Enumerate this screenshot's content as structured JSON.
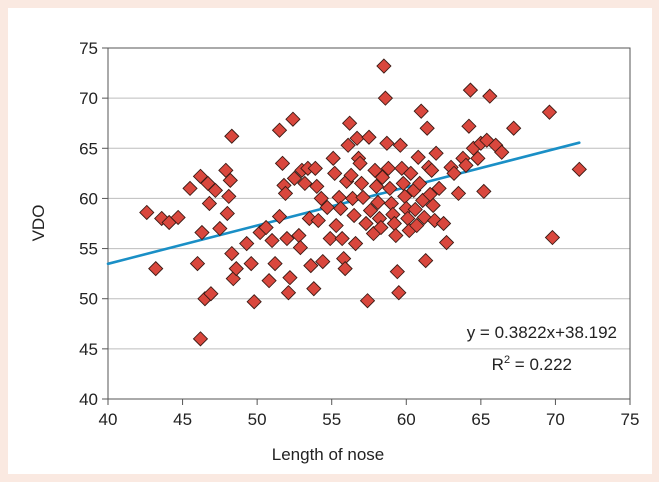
{
  "chart_data": {
    "type": "scatter",
    "xlabel": "Length of nose",
    "ylabel": "VDO",
    "xlim": [
      40,
      75
    ],
    "ylim": [
      40,
      75
    ],
    "xticks": [
      "40",
      "45",
      "50",
      "55",
      "60",
      "65",
      "70",
      "75"
    ],
    "yticks": [
      "40",
      "45",
      "50",
      "55",
      "60",
      "65",
      "70",
      "75"
    ],
    "grid": "horizontal",
    "marker": "diamond",
    "marker_color": "#d9473d",
    "trendline_color": "#1a8fc6",
    "trendline": {
      "slope": 0.3822,
      "intercept": 38.192
    },
    "equation_text": "y = 0.3822x+38.192",
    "r2_prefix": "R",
    "r2_sup": "2",
    "r2_value": " = 0.222",
    "points": [
      [
        42.6,
        58.6
      ],
      [
        43.2,
        53.0
      ],
      [
        43.6,
        58.0
      ],
      [
        44.1,
        57.6
      ],
      [
        44.7,
        58.1
      ],
      [
        45.5,
        61.0
      ],
      [
        46.0,
        53.5
      ],
      [
        46.2,
        62.2
      ],
      [
        46.2,
        46.0
      ],
      [
        46.3,
        56.6
      ],
      [
        46.5,
        50.0
      ],
      [
        46.7,
        61.5
      ],
      [
        46.8,
        59.5
      ],
      [
        46.9,
        50.5
      ],
      [
        47.2,
        60.8
      ],
      [
        47.5,
        57.0
      ],
      [
        47.9,
        62.8
      ],
      [
        48.0,
        58.5
      ],
      [
        48.1,
        60.2
      ],
      [
        48.2,
        61.8
      ],
      [
        48.3,
        66.2
      ],
      [
        48.3,
        54.5
      ],
      [
        48.4,
        52.0
      ],
      [
        48.6,
        53.0
      ],
      [
        49.3,
        55.5
      ],
      [
        49.6,
        53.5
      ],
      [
        49.8,
        49.7
      ],
      [
        50.2,
        56.6
      ],
      [
        50.6,
        57.1
      ],
      [
        50.8,
        51.8
      ],
      [
        51.0,
        55.8
      ],
      [
        51.2,
        53.5
      ],
      [
        51.5,
        58.2
      ],
      [
        51.5,
        66.8
      ],
      [
        51.7,
        63.5
      ],
      [
        51.8,
        61.3
      ],
      [
        51.9,
        60.5
      ],
      [
        52.0,
        56.0
      ],
      [
        52.1,
        50.6
      ],
      [
        52.2,
        52.1
      ],
      [
        52.4,
        67.9
      ],
      [
        52.5,
        62.0
      ],
      [
        52.8,
        56.3
      ],
      [
        52.9,
        55.1
      ],
      [
        53.0,
        62.8
      ],
      [
        53.2,
        61.5
      ],
      [
        53.4,
        63.0
      ],
      [
        53.5,
        58.0
      ],
      [
        53.6,
        53.3
      ],
      [
        53.8,
        51.0
      ],
      [
        53.9,
        63.0
      ],
      [
        54.0,
        61.2
      ],
      [
        54.1,
        57.8
      ],
      [
        54.3,
        60.0
      ],
      [
        54.4,
        53.7
      ],
      [
        54.7,
        59.1
      ],
      [
        54.9,
        56.0
      ],
      [
        55.1,
        64.0
      ],
      [
        55.2,
        62.5
      ],
      [
        55.3,
        57.3
      ],
      [
        55.5,
        60.1
      ],
      [
        55.6,
        59.0
      ],
      [
        55.7,
        56.0
      ],
      [
        55.8,
        54.0
      ],
      [
        55.9,
        53.0
      ],
      [
        56.0,
        61.7
      ],
      [
        56.1,
        65.3
      ],
      [
        56.2,
        67.5
      ],
      [
        56.3,
        62.3
      ],
      [
        56.4,
        60.0
      ],
      [
        56.5,
        58.3
      ],
      [
        56.6,
        55.5
      ],
      [
        56.7,
        66.0
      ],
      [
        56.8,
        64.0
      ],
      [
        56.9,
        63.5
      ],
      [
        57.0,
        61.5
      ],
      [
        57.1,
        60.1
      ],
      [
        57.3,
        57.5
      ],
      [
        57.4,
        49.8
      ],
      [
        57.5,
        66.1
      ],
      [
        57.6,
        58.8
      ],
      [
        57.8,
        56.5
      ],
      [
        57.9,
        62.8
      ],
      [
        58.0,
        61.2
      ],
      [
        58.1,
        59.6
      ],
      [
        58.2,
        58.0
      ],
      [
        58.3,
        57.1
      ],
      [
        58.4,
        62.1
      ],
      [
        58.5,
        73.2
      ],
      [
        58.6,
        70.0
      ],
      [
        58.7,
        65.5
      ],
      [
        58.8,
        63.0
      ],
      [
        58.9,
        61.0
      ],
      [
        59.0,
        59.5
      ],
      [
        59.1,
        58.4
      ],
      [
        59.2,
        57.5
      ],
      [
        59.3,
        56.3
      ],
      [
        59.4,
        52.7
      ],
      [
        59.5,
        50.6
      ],
      [
        59.6,
        65.3
      ],
      [
        59.7,
        63.0
      ],
      [
        59.8,
        61.5
      ],
      [
        59.9,
        60.2
      ],
      [
        60.0,
        59.0
      ],
      [
        60.1,
        58.0
      ],
      [
        60.2,
        56.8
      ],
      [
        60.3,
        62.5
      ],
      [
        60.5,
        60.8
      ],
      [
        60.6,
        58.9
      ],
      [
        60.7,
        57.3
      ],
      [
        60.8,
        64.1
      ],
      [
        60.9,
        61.5
      ],
      [
        61.0,
        68.7
      ],
      [
        61.1,
        59.8
      ],
      [
        61.2,
        58.1
      ],
      [
        61.3,
        53.8
      ],
      [
        61.4,
        67.0
      ],
      [
        61.5,
        63.1
      ],
      [
        61.6,
        60.4
      ],
      [
        61.7,
        62.8
      ],
      [
        61.8,
        59.3
      ],
      [
        61.9,
        57.8
      ],
      [
        62.0,
        64.5
      ],
      [
        62.2,
        61.0
      ],
      [
        62.5,
        57.5
      ],
      [
        62.7,
        55.6
      ],
      [
        63.0,
        63.1
      ],
      [
        63.2,
        62.5
      ],
      [
        63.5,
        60.5
      ],
      [
        63.8,
        64.0
      ],
      [
        64.0,
        63.3
      ],
      [
        64.2,
        67.2
      ],
      [
        64.3,
        70.8
      ],
      [
        64.5,
        65.0
      ],
      [
        64.8,
        64.0
      ],
      [
        65.0,
        65.5
      ],
      [
        65.2,
        60.7
      ],
      [
        65.4,
        65.8
      ],
      [
        65.6,
        70.2
      ],
      [
        66.0,
        65.3
      ],
      [
        66.4,
        64.6
      ],
      [
        67.2,
        67.0
      ],
      [
        69.6,
        68.6
      ],
      [
        69.8,
        56.1
      ],
      [
        71.6,
        62.9
      ]
    ]
  }
}
